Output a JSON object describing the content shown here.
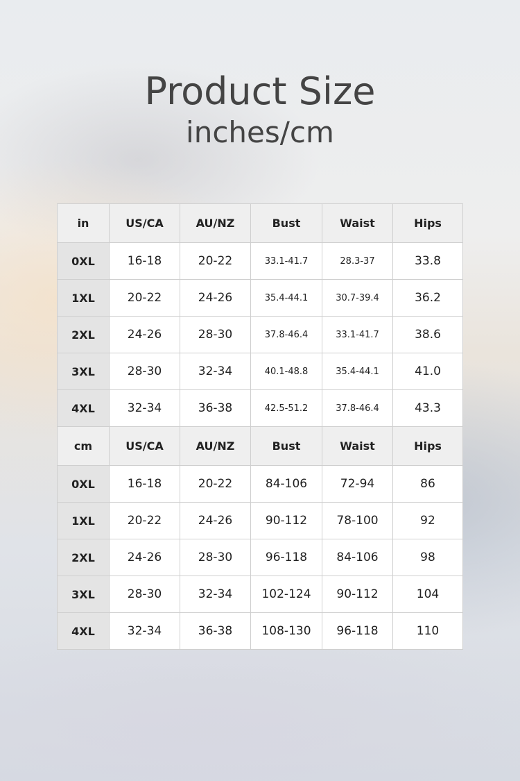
{
  "title": "Product Size",
  "subtitle": "inches/cm",
  "tables": [
    {
      "unit": "in",
      "headers": [
        "US/CA",
        "AU/NZ",
        "Bust",
        "Waist",
        "Hips"
      ],
      "rows": [
        [
          "0XL",
          "16-18",
          "20-22",
          "33.1-41.7",
          "28.3-37",
          "33.8"
        ],
        [
          "1XL",
          "20-22",
          "24-26",
          "35.4-44.1",
          "30.7-39.4",
          "36.2"
        ],
        [
          "2XL",
          "24-26",
          "28-30",
          "37.8-46.4",
          "33.1-41.7",
          "38.6"
        ],
        [
          "3XL",
          "28-30",
          "32-34",
          "40.1-48.8",
          "35.4-44.1",
          "41.0"
        ],
        [
          "4XL",
          "32-34",
          "36-38",
          "42.5-51.2",
          "37.8-46.4",
          "43.3"
        ]
      ]
    },
    {
      "unit": "cm",
      "headers": [
        "US/CA",
        "AU/NZ",
        "Bust",
        "Waist",
        "Hips"
      ],
      "rows": [
        [
          "0XL",
          "16-18",
          "20-22",
          "84-106",
          "72-94",
          "86"
        ],
        [
          "1XL",
          "20-22",
          "24-26",
          "90-112",
          "78-100",
          "92"
        ],
        [
          "2XL",
          "24-26",
          "28-30",
          "96-118",
          "84-106",
          "98"
        ],
        [
          "3XL",
          "28-30",
          "32-34",
          "102-124",
          "90-112",
          "104"
        ],
        [
          "4XL",
          "32-34",
          "36-38",
          "108-130",
          "96-118",
          "110"
        ]
      ]
    }
  ]
}
